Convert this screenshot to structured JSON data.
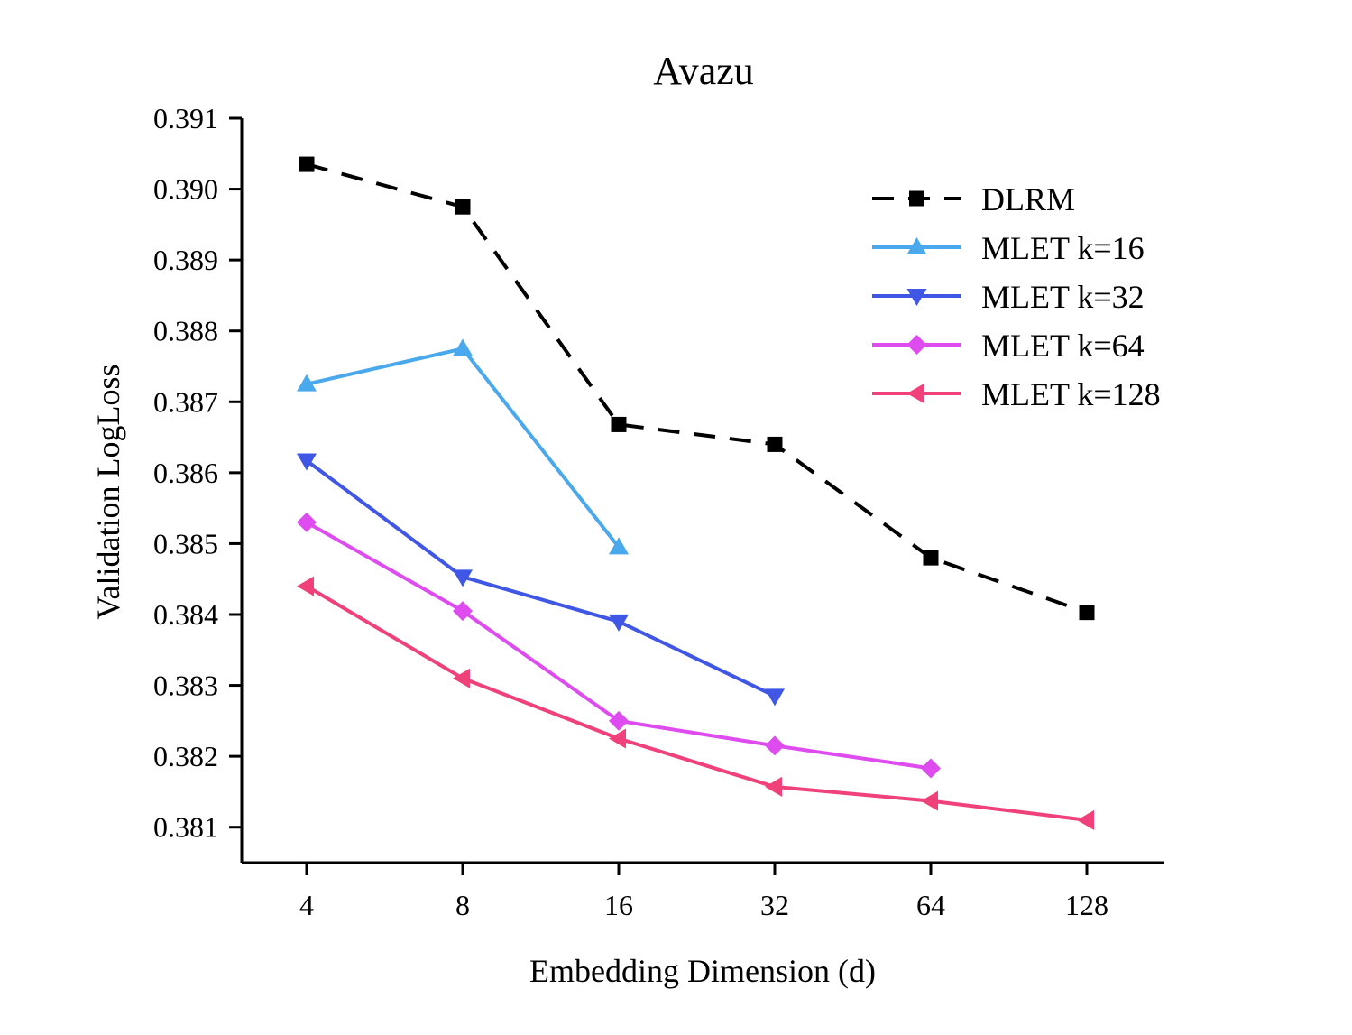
{
  "chart_data": {
    "type": "line",
    "title": "Avazu",
    "xlabel": "Embedding Dimension (d)",
    "ylabel": "Validation LogLoss",
    "categories": [
      "4",
      "8",
      "16",
      "32",
      "64",
      "128"
    ],
    "ylim": [
      0.3805,
      0.391
    ],
    "yticks": [
      "0.381",
      "0.382",
      "0.383",
      "0.384",
      "0.385",
      "0.386",
      "0.387",
      "0.388",
      "0.389",
      "0.390",
      "0.391"
    ],
    "legend_position": "top-right",
    "grid": false,
    "series": [
      {
        "name": "DLRM",
        "color": "#000000",
        "marker": "square",
        "dashed": true,
        "values": [
          0.39035,
          0.38975,
          0.38668,
          0.3864,
          0.3848,
          0.38403
        ]
      },
      {
        "name": "MLET k=16",
        "color": "#4aa8ec",
        "marker": "triangle-up",
        "dashed": false,
        "values": [
          0.38725,
          0.38775,
          0.38495,
          null,
          null,
          null
        ]
      },
      {
        "name": "MLET k=32",
        "color": "#3f57e4",
        "marker": "triangle-down",
        "dashed": false,
        "values": [
          0.38617,
          0.38453,
          0.3839,
          0.38285,
          null,
          null
        ]
      },
      {
        "name": "MLET k=64",
        "color": "#de4cf0",
        "marker": "diamond",
        "dashed": false,
        "values": [
          0.3853,
          0.38405,
          0.3825,
          0.38215,
          0.38183,
          null
        ]
      },
      {
        "name": "MLET k=128",
        "color": "#f0417b",
        "marker": "triangle-left",
        "dashed": false,
        "values": [
          0.3844,
          0.3831,
          0.38225,
          0.38157,
          0.38137,
          0.3811
        ]
      }
    ]
  }
}
